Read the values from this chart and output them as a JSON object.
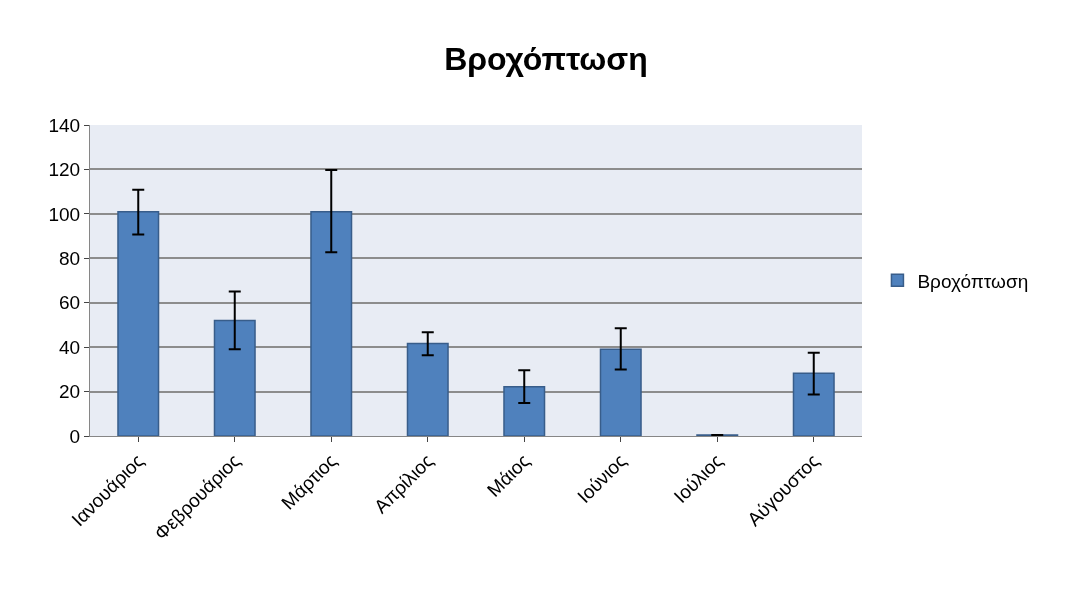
{
  "chart_data": {
    "type": "bar",
    "title": "Βροχόπτωση",
    "categories": [
      "Ιανουάριος",
      "Φεβρουάριος",
      "Μάρτιος",
      "Απρίλιος",
      "Μάιος",
      "Ιούνιος",
      "Ιούλιος",
      "Αύγουστος"
    ],
    "series": [
      {
        "name": "Βροχόπτωση",
        "color": "#4f81bd",
        "values": [
          101,
          52,
          101,
          41.6,
          22.2,
          39.1,
          0.4,
          28.2
        ],
        "errors": [
          [
            90.7,
            110.8
          ],
          [
            39,
            65
          ],
          [
            82.7,
            119.7
          ],
          [
            36.3,
            46.7
          ],
          [
            14.9,
            29.6
          ],
          [
            29.9,
            48.5
          ],
          null,
          [
            18.7,
            37.5
          ]
        ]
      }
    ],
    "ylim": [
      0,
      140
    ],
    "yticks": [
      0,
      20,
      40,
      60,
      80,
      100,
      120,
      140
    ],
    "grid": "y",
    "legend": "right"
  }
}
